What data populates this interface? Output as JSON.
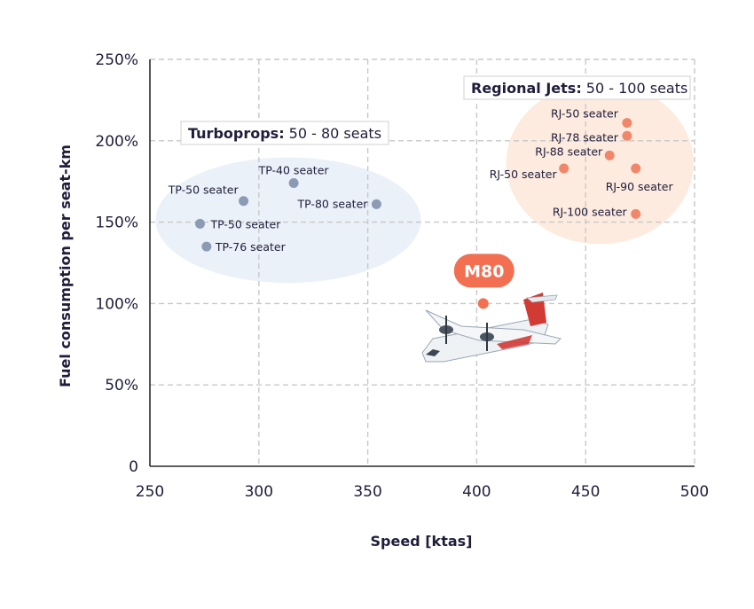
{
  "chart_data": {
    "type": "scatter",
    "xlabel": "Speed [ktas]",
    "ylabel": "Fuel consumption per seat-km",
    "xlim": [
      250,
      500
    ],
    "ylim": [
      0,
      250
    ],
    "x_ticks": [
      250,
      300,
      350,
      400,
      450,
      500
    ],
    "y_ticks": [
      0,
      50,
      100,
      150,
      200,
      250
    ],
    "y_tick_labels": [
      "0",
      "50%",
      "100%",
      "150%",
      "200%",
      "250%"
    ],
    "grid": true,
    "groups": [
      {
        "name_bold": "Turboprops:",
        "name_rest": " 50 - 80 seats",
        "color": "#8b9bb4",
        "region_color": "#e8eef7",
        "points": [
          {
            "label": "TP-40 seater",
            "x": 316,
            "y": 174
          },
          {
            "label": "TP-50 seater",
            "x": 293,
            "y": 163
          },
          {
            "label": "TP-80 seater",
            "x": 354,
            "y": 161
          },
          {
            "label": "TP-50 seater",
            "x": 273,
            "y": 149
          },
          {
            "label": "TP-76 seater",
            "x": 276,
            "y": 135
          }
        ]
      },
      {
        "name_bold": "Regional Jets:",
        "name_rest": " 50 - 100 seats",
        "color": "#f0876a",
        "region_color": "#fde8d9",
        "points": [
          {
            "label": "RJ-50 seater",
            "x": 469,
            "y": 211
          },
          {
            "label": "RJ-78 seater",
            "x": 469,
            "y": 203
          },
          {
            "label": "RJ-88 seater",
            "x": 461,
            "y": 191
          },
          {
            "label": "RJ-50 seater",
            "x": 440,
            "y": 183
          },
          {
            "label": "RJ-90 seater",
            "x": 473,
            "y": 183
          },
          {
            "label": "RJ-100 seater",
            "x": 473,
            "y": 155
          }
        ]
      }
    ],
    "highlight": {
      "label": "M80",
      "x": 403,
      "y": 100,
      "color": "#f26f52"
    }
  }
}
